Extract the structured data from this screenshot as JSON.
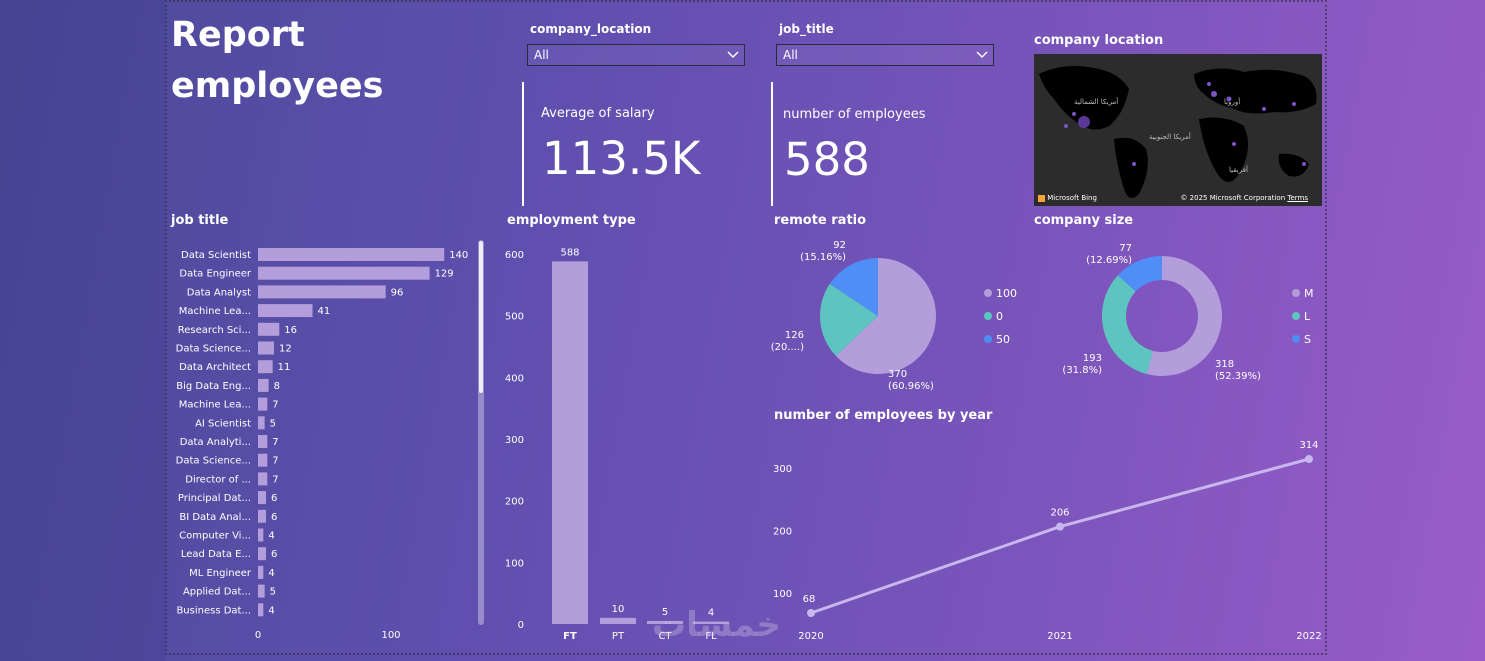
{
  "report": {
    "title_line1": "Report",
    "title_line2": "employees"
  },
  "slicers": [
    {
      "label": "company_location",
      "value": "All"
    },
    {
      "label": "job_title",
      "value": "All"
    }
  ],
  "cards": [
    {
      "label": "Average of salary",
      "value": "113.5K"
    },
    {
      "label": "number of employees",
      "value": "588"
    }
  ],
  "map": {
    "title": "company location",
    "provider": "Microsoft Bing",
    "copyright": "© 2025 Microsoft Corporation",
    "terms": "Terms",
    "region_labels": [
      "أمريكا الشمالية",
      "أمريكا الجنوبية",
      "أوروبا",
      "أفريقيا"
    ]
  },
  "watermark": "خمسات",
  "chart_data": [
    {
      "id": "job-title",
      "type": "bar",
      "orientation": "horizontal",
      "title": "job title",
      "categories": [
        "Data Scientist",
        "Data Engineer",
        "Data Analyst",
        "Machine Lea...",
        "Research Sci...",
        "Data Science...",
        "Data Architect",
        "Big Data Eng...",
        "Machine Lea...",
        "AI Scientist",
        "Data Analyti...",
        "Data Science...",
        "Director of ...",
        "Principal Dat...",
        "BI Data Anal...",
        "Computer Vi...",
        "Lead Data E...",
        "ML Engineer",
        "Applied Dat...",
        "Business Dat..."
      ],
      "values": [
        140,
        129,
        96,
        41,
        16,
        12,
        11,
        8,
        7,
        5,
        7,
        7,
        7,
        6,
        6,
        4,
        6,
        4,
        5,
        4
      ],
      "xticks": [
        "0",
        "100"
      ],
      "xlim": [
        0,
        150
      ],
      "color": "#b39ddb"
    },
    {
      "id": "employment-type",
      "type": "bar",
      "title": "employment type",
      "categories": [
        "FT",
        "PT",
        "CT",
        "FL"
      ],
      "values": [
        588,
        10,
        5,
        4
      ],
      "yticks": [
        "0",
        "100",
        "200",
        "300",
        "400",
        "500",
        "600"
      ],
      "ylim": [
        0,
        600
      ],
      "color": "#b39ddb"
    },
    {
      "id": "remote-ratio",
      "type": "pie",
      "title": "remote ratio",
      "slices": [
        {
          "name": "100",
          "value": 370,
          "label_value": "370",
          "label_pct": "(60.96%)",
          "color": "#b39ddb"
        },
        {
          "name": "0",
          "value": 126,
          "label_value": "126",
          "label_pct": "(20....)",
          "color": "#5ec4c0"
        },
        {
          "name": "50",
          "value": 92,
          "label_value": "92",
          "label_pct": "(15.16%)",
          "color": "#4f8df7"
        }
      ]
    },
    {
      "id": "company-size",
      "type": "pie",
      "donut": true,
      "title": "company size",
      "slices": [
        {
          "name": "M",
          "value": 318,
          "label_value": "318",
          "label_pct": "(52.39%)",
          "color": "#b39ddb"
        },
        {
          "name": "L",
          "value": 193,
          "label_value": "193",
          "label_pct": "(31.8%)",
          "color": "#5ec4c0"
        },
        {
          "name": "S",
          "value": 77,
          "label_value": "77",
          "label_pct": "(12.69%)",
          "color": "#4f8df7"
        }
      ]
    },
    {
      "id": "employees-by-year",
      "type": "line",
      "title": "number of employees by year",
      "x": [
        "2020",
        "2021",
        "2022"
      ],
      "values": [
        68,
        206,
        314
      ],
      "yticks": [
        "100",
        "200",
        "300"
      ],
      "ylim": [
        50,
        330
      ],
      "color": "#c8b6ef"
    }
  ]
}
